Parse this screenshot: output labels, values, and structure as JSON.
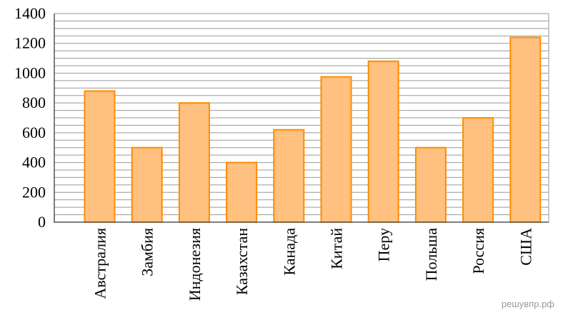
{
  "chart_data": {
    "type": "bar",
    "categories": [
      "Австралия",
      "Замбия",
      "Индонезия",
      "Казахстан",
      "Канада",
      "Китай",
      "Перу",
      "Польша",
      "Россия",
      "США"
    ],
    "values": [
      880,
      500,
      800,
      400,
      620,
      975,
      1080,
      500,
      700,
      1240
    ],
    "ylim": [
      0,
      1400
    ],
    "yticks": [
      "0",
      "200",
      "400",
      "600",
      "800",
      "1000",
      "1200",
      "1400"
    ],
    "minor_step": 50,
    "grid": true,
    "title": "",
    "xlabel": "",
    "ylabel": "",
    "bar_fill": "#FFC080",
    "bar_stroke": "#FF8C00",
    "grid_color": "#999999"
  },
  "watermark": "решувпр.рф"
}
